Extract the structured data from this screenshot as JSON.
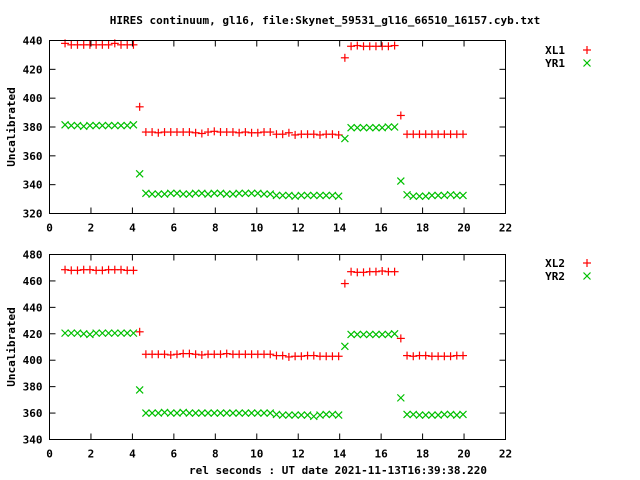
{
  "title": "HIRES continuum, gl16, file:Skynet_59531_gl16_66510_16157.cyb.txt",
  "colors": {
    "x_series": "#ff0000",
    "y_series": "#00c000",
    "axis": "#000000"
  },
  "chart_data": [
    {
      "type": "scatter",
      "ylabel": "Uncalibrated",
      "xlabel": "",
      "xlim": [
        0,
        22
      ],
      "ylim": [
        320,
        440
      ],
      "xticks": [
        "0",
        "2",
        "4",
        "6",
        "8",
        "10",
        "12",
        "14",
        "16",
        "18",
        "20",
        "22"
      ],
      "yticks": [
        "320",
        "340",
        "360",
        "380",
        "400",
        "420",
        "440"
      ],
      "grid": false,
      "legend_placement": "top-right",
      "x": [
        0.75,
        1.05,
        1.35,
        1.65,
        1.95,
        2.25,
        2.55,
        2.85,
        3.15,
        3.45,
        3.75,
        4.05,
        4.35,
        4.65,
        4.95,
        5.25,
        5.55,
        5.85,
        6.15,
        6.45,
        6.75,
        7.05,
        7.35,
        7.65,
        7.95,
        8.25,
        8.55,
        8.85,
        9.15,
        9.45,
        9.75,
        10.05,
        10.35,
        10.65,
        10.95,
        11.25,
        11.55,
        11.85,
        12.15,
        12.45,
        12.75,
        13.05,
        13.35,
        13.65,
        13.95,
        14.25,
        14.55,
        14.85,
        15.15,
        15.45,
        15.75,
        16.05,
        16.35,
        16.65,
        16.95,
        17.25,
        17.55,
        17.85,
        18.15,
        18.45,
        18.75,
        19.05,
        19.35,
        19.65,
        19.95
      ],
      "series": [
        {
          "name": "XL1",
          "marker": "plus",
          "values": [
            438,
            437,
            437,
            437,
            437,
            437,
            437,
            437,
            438,
            437,
            437,
            437,
            394,
            376.5,
            376.5,
            376,
            376.5,
            376.5,
            376.5,
            376.5,
            376.5,
            376,
            375.5,
            376.5,
            377,
            376.5,
            376.5,
            376.5,
            376,
            376.5,
            376,
            376,
            376.5,
            376.5,
            375,
            375,
            376,
            374.5,
            375,
            375,
            375,
            374.5,
            375,
            375,
            374.5,
            428,
            436,
            436.5,
            436,
            436,
            436,
            436,
            436,
            436.5,
            388,
            375,
            375,
            375,
            375,
            375,
            375,
            375,
            375,
            375,
            375
          ]
        },
        {
          "name": "YR1",
          "marker": "cross",
          "values": [
            381.5,
            381,
            381,
            380.5,
            381,
            381,
            381,
            381,
            381,
            381,
            381,
            381.5,
            347.5,
            334,
            333.5,
            333.5,
            333.5,
            334,
            334,
            333.5,
            333.5,
            334,
            334,
            333.5,
            334,
            334,
            333.5,
            333.5,
            334,
            334,
            334,
            334,
            333.5,
            333.5,
            332.5,
            332.5,
            332.5,
            332,
            332.5,
            332.5,
            332.5,
            332.5,
            332.5,
            332.5,
            332,
            372,
            379.5,
            379.5,
            379.5,
            379.5,
            379.5,
            379.5,
            380,
            380,
            342.5,
            333,
            332,
            332,
            332,
            332.5,
            332.5,
            332.5,
            333,
            332.5,
            332.5
          ]
        }
      ]
    },
    {
      "type": "scatter",
      "ylabel": "Uncalibrated",
      "xlabel": "rel seconds : UT date 2021-11-13T16:39:38.220",
      "xlim": [
        0,
        22
      ],
      "ylim": [
        340,
        480
      ],
      "xticks": [
        "0",
        "2",
        "4",
        "6",
        "8",
        "10",
        "12",
        "14",
        "16",
        "18",
        "20",
        "22"
      ],
      "yticks": [
        "340",
        "360",
        "380",
        "400",
        "420",
        "440",
        "460",
        "480"
      ],
      "grid": false,
      "legend_placement": "top-right",
      "x": [
        0.75,
        1.05,
        1.35,
        1.65,
        1.95,
        2.25,
        2.55,
        2.85,
        3.15,
        3.45,
        3.75,
        4.05,
        4.35,
        4.65,
        4.95,
        5.25,
        5.55,
        5.85,
        6.15,
        6.45,
        6.75,
        7.05,
        7.35,
        7.65,
        7.95,
        8.25,
        8.55,
        8.85,
        9.15,
        9.45,
        9.75,
        10.05,
        10.35,
        10.65,
        10.95,
        11.25,
        11.55,
        11.85,
        12.15,
        12.45,
        12.75,
        13.05,
        13.35,
        13.65,
        13.95,
        14.25,
        14.55,
        14.85,
        15.15,
        15.45,
        15.75,
        16.05,
        16.35,
        16.65,
        16.95,
        17.25,
        17.55,
        17.85,
        18.15,
        18.45,
        18.75,
        19.05,
        19.35,
        19.65,
        19.95
      ],
      "series": [
        {
          "name": "XL2",
          "marker": "plus",
          "values": [
            468.5,
            468,
            468,
            468.5,
            468.5,
            468,
            468,
            468.5,
            468.5,
            468.5,
            468,
            468,
            421.5,
            404.5,
            404.5,
            404.5,
            404.5,
            404,
            404.5,
            405,
            405,
            404.5,
            404,
            404.5,
            404.5,
            404.5,
            405,
            404.5,
            404.5,
            404.5,
            404.5,
            404.5,
            404.5,
            404.5,
            403.5,
            403.5,
            402.5,
            403,
            403,
            403.5,
            403.5,
            403,
            403,
            403,
            403,
            458,
            467,
            466.5,
            466.5,
            467,
            467,
            467.5,
            467,
            467,
            416.5,
            403.5,
            403,
            403.5,
            403.5,
            403,
            403,
            403,
            403,
            403.5,
            403.5
          ]
        },
        {
          "name": "YR2",
          "marker": "cross",
          "values": [
            420.5,
            420.5,
            420.5,
            420,
            419.5,
            420.5,
            420.5,
            420.5,
            420.5,
            420.5,
            420.5,
            420.5,
            377.5,
            360,
            360,
            360,
            360.5,
            360,
            360,
            360.5,
            360,
            360,
            360,
            360,
            360,
            360,
            360,
            360,
            360,
            360,
            360,
            360,
            360,
            360,
            359,
            358.5,
            358.5,
            358.5,
            358.5,
            358.5,
            357.5,
            358.5,
            359,
            359,
            358.5,
            410.5,
            419.5,
            419.5,
            419.5,
            419.5,
            419.5,
            419.5,
            419.5,
            420,
            371.5,
            359,
            359,
            358.5,
            358.5,
            358.5,
            358.5,
            359,
            359,
            358.5,
            359
          ]
        }
      ]
    }
  ]
}
